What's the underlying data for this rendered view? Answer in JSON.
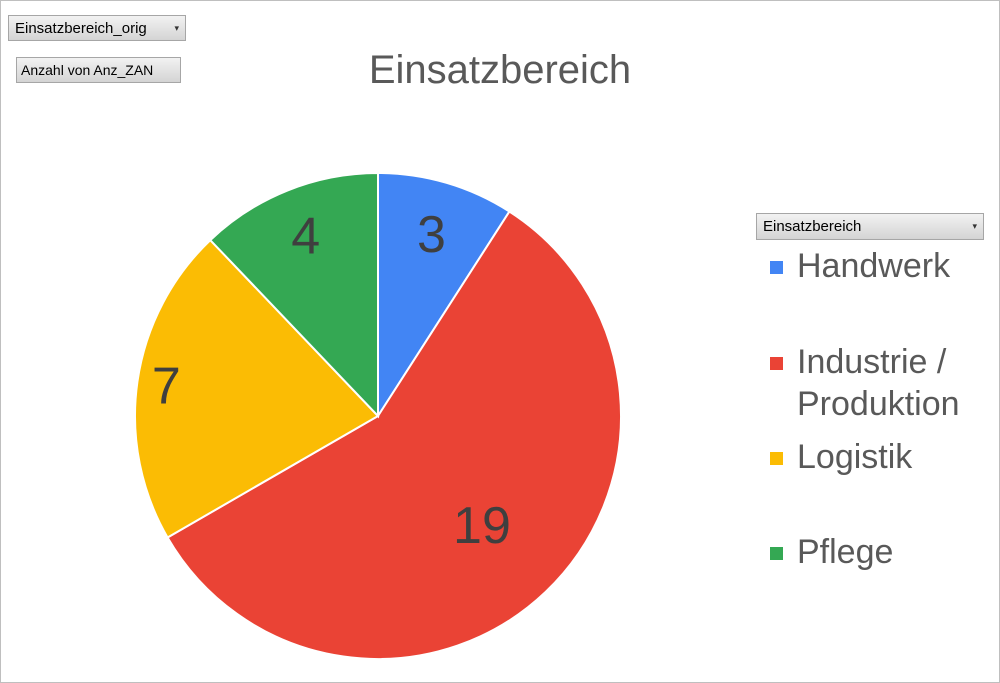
{
  "controls": {
    "filter_field": "Einsatzbereich_orig",
    "value_field": "Anzahl von Anz_ZAN",
    "legend_field": "Einsatzbereich",
    "dropdown_icon": "chevron-down-icon"
  },
  "chart_data": {
    "type": "pie",
    "title": "Einsatzbereich",
    "legend_title": "Einsatzbereich",
    "legend_position": "right",
    "categories": [
      "Handwerk",
      "Industrie / Produktion",
      "Logistik",
      "Pflege"
    ],
    "values": [
      3,
      19,
      7,
      4
    ],
    "colors": [
      "#4285F4",
      "#EA4335",
      "#FBBC04",
      "#34A853"
    ],
    "data_labels": [
      "3",
      "19",
      "7",
      "4"
    ]
  }
}
